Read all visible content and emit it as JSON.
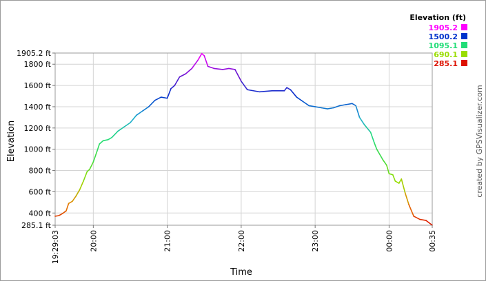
{
  "chart_data": {
    "type": "line",
    "xlabel": "Time",
    "ylabel": "Elevation",
    "x_ticks": [
      "19:29:03",
      "20:00",
      "21:00",
      "22:00",
      "23:00",
      "00:00",
      "00:35"
    ],
    "y_ticks": [
      {
        "value": 285.1,
        "label": "285.1 ft"
      },
      {
        "value": 400,
        "label": "400 ft"
      },
      {
        "value": 600,
        "label": "600 ft"
      },
      {
        "value": 800,
        "label": "800 ft"
      },
      {
        "value": 1000,
        "label": "1000 ft"
      },
      {
        "value": 1200,
        "label": "1200 ft"
      },
      {
        "value": 1400,
        "label": "1400 ft"
      },
      {
        "value": 1600,
        "label": "1600 ft"
      },
      {
        "value": 1800,
        "label": "1800 ft"
      },
      {
        "value": 1905.2,
        "label": "1905.2 ft"
      }
    ],
    "ylim": [
      285.1,
      1905.2
    ],
    "grid": true,
    "legend": {
      "title": "Elevation (ft)",
      "placement": "top-right",
      "entries": [
        {
          "label": "1905.2",
          "color": "#ff00ff"
        },
        {
          "label": "1500.2",
          "color": "#0033cc"
        },
        {
          "label": "1095.1",
          "color": "#22dd77"
        },
        {
          "label": "690.1",
          "color": "#99dd00"
        },
        {
          "label": "285.1",
          "color": "#dd1100"
        }
      ]
    },
    "series": [
      {
        "x": [
          "19:29",
          "19:32",
          "19:35",
          "19:38",
          "19:40",
          "19:43",
          "19:46",
          "19:49",
          "19:52",
          "19:55",
          "19:57",
          "20:00",
          "20:03",
          "20:05",
          "20:08",
          "20:12",
          "20:15",
          "20:20",
          "20:25",
          "20:30",
          "20:35",
          "20:40",
          "20:45",
          "20:50",
          "20:55",
          "21:00",
          "21:03",
          "21:06",
          "21:10",
          "21:15",
          "21:20",
          "21:25",
          "21:28",
          "21:30",
          "21:33",
          "21:38",
          "21:45",
          "21:50",
          "21:55",
          "22:00",
          "22:05",
          "22:15",
          "22:25",
          "22:35",
          "22:37",
          "22:40",
          "22:45",
          "22:50",
          "22:55",
          "23:00",
          "23:05",
          "23:10",
          "23:15",
          "23:20",
          "23:25",
          "23:30",
          "23:33",
          "23:36",
          "23:40",
          "23:45",
          "23:48",
          "23:50",
          "23:55",
          "23:58",
          "00:00",
          "00:03",
          "00:05",
          "00:08",
          "00:10",
          "00:13",
          "00:16",
          "00:20",
          "00:25",
          "00:30",
          "00:35"
        ],
        "y": [
          370,
          375,
          395,
          420,
          490,
          510,
          560,
          620,
          700,
          790,
          810,
          880,
          980,
          1050,
          1080,
          1090,
          1110,
          1170,
          1210,
          1250,
          1320,
          1360,
          1400,
          1460,
          1490,
          1480,
          1570,
          1600,
          1680,
          1710,
          1760,
          1840,
          1900,
          1880,
          1780,
          1760,
          1750,
          1760,
          1750,
          1640,
          1560,
          1540,
          1550,
          1550,
          1580,
          1560,
          1490,
          1450,
          1410,
          1400,
          1390,
          1380,
          1390,
          1410,
          1420,
          1430,
          1410,
          1300,
          1230,
          1160,
          1060,
          1000,
          900,
          850,
          770,
          760,
          700,
          680,
          720,
          590,
          480,
          370,
          340,
          330,
          285
        ]
      }
    ]
  },
  "credit": "created by GPSVisualizer.com"
}
